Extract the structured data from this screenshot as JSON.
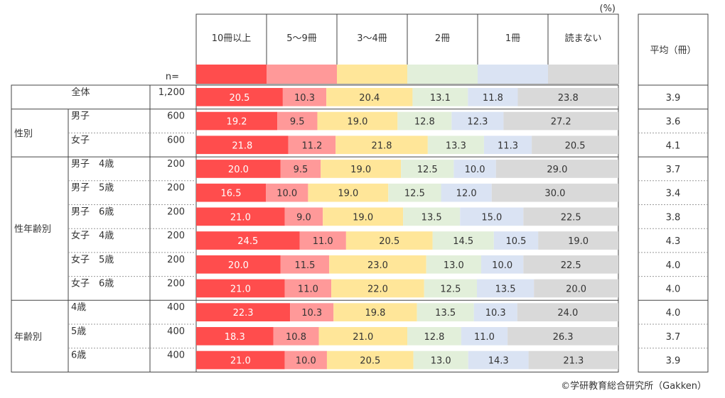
{
  "chart_data": {
    "type": "bar",
    "stacked": "percent",
    "orientation": "horizontal",
    "unit_label": "(%)",
    "n_header": "n=",
    "average_header": "平均（冊）",
    "credit": "©学研教育総合研究所（Gakken）",
    "series": [
      {
        "name": "10冊以上",
        "color": "#ff4d4d"
      },
      {
        "name": "5～9冊",
        "color": "#ff9999"
      },
      {
        "name": "3～4冊",
        "color": "#ffe699"
      },
      {
        "name": "2冊",
        "color": "#e2efda"
      },
      {
        "name": "1冊",
        "color": "#dae3f3"
      },
      {
        "name": "読まない",
        "color": "#d9d9d9"
      }
    ],
    "groups": [
      {
        "label": "",
        "rows": [
          0
        ]
      },
      {
        "label": "性別",
        "rows": [
          1,
          2
        ]
      },
      {
        "label": "性年齢別",
        "rows": [
          3,
          4,
          5,
          6,
          7,
          8
        ]
      },
      {
        "label": "年齢別",
        "rows": [
          9,
          10,
          11
        ]
      }
    ],
    "rows": [
      {
        "label": "全体",
        "n": "1,200",
        "values": [
          20.5,
          10.3,
          20.4,
          13.1,
          11.8,
          23.8
        ],
        "average": "3.9"
      },
      {
        "label": "男子",
        "n": "600",
        "values": [
          19.2,
          9.5,
          19.0,
          12.8,
          12.3,
          27.2
        ],
        "average": "3.6"
      },
      {
        "label": "女子",
        "n": "600",
        "values": [
          21.8,
          11.2,
          21.8,
          13.3,
          11.3,
          20.5
        ],
        "average": "4.1"
      },
      {
        "label": "男子　4歳",
        "n": "200",
        "values": [
          20.0,
          9.5,
          19.0,
          12.5,
          10.0,
          29.0
        ],
        "average": "3.7"
      },
      {
        "label": "男子　5歳",
        "n": "200",
        "values": [
          16.5,
          10.0,
          19.0,
          12.5,
          12.0,
          30.0
        ],
        "average": "3.4"
      },
      {
        "label": "男子　6歳",
        "n": "200",
        "values": [
          21.0,
          9.0,
          19.0,
          13.5,
          15.0,
          22.5
        ],
        "average": "3.8"
      },
      {
        "label": "女子　4歳",
        "n": "200",
        "values": [
          24.5,
          11.0,
          20.5,
          14.5,
          10.5,
          19.0
        ],
        "average": "4.3"
      },
      {
        "label": "女子　5歳",
        "n": "200",
        "values": [
          20.0,
          11.5,
          23.0,
          13.0,
          10.0,
          22.5
        ],
        "average": "4.0"
      },
      {
        "label": "女子　6歳",
        "n": "200",
        "values": [
          21.0,
          11.0,
          22.0,
          12.5,
          13.5,
          20.0
        ],
        "average": "4.0"
      },
      {
        "label": "4歳",
        "n": "400",
        "values": [
          22.3,
          10.3,
          19.8,
          13.5,
          10.3,
          24.0
        ],
        "average": "4.0"
      },
      {
        "label": "5歳",
        "n": "400",
        "values": [
          18.3,
          10.8,
          21.0,
          12.8,
          11.0,
          26.3
        ],
        "average": "3.7"
      },
      {
        "label": "6歳",
        "n": "400",
        "values": [
          21.0,
          10.0,
          20.5,
          13.0,
          14.3,
          21.3
        ],
        "average": "3.9"
      }
    ],
    "xlim": [
      0,
      100
    ]
  }
}
